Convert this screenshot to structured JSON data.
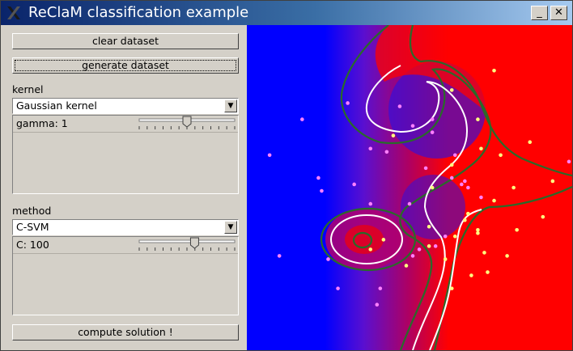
{
  "window": {
    "title": "ReClaM classification example",
    "minimize_label": "_",
    "close_label": "✕",
    "app_icon": "x-logo-icon"
  },
  "panel": {
    "clear_label": "clear dataset",
    "generate_label": "generate dataset",
    "kernel": {
      "heading": "kernel",
      "selected": "Gaussian kernel",
      "param_label": "gamma: 1",
      "slider_fraction": 0.5
    },
    "method": {
      "heading": "method",
      "selected": "C-SVM",
      "param_label": "C: 100",
      "slider_fraction": 0.58
    },
    "compute_label": "compute solution !"
  },
  "colors": {
    "class_a_region": "#0000ff",
    "class_b_region": "#ff0000",
    "decision_boundary": "#ffffff",
    "margin": "#2a6a2a",
    "class_a_point": "#ff80ff",
    "class_b_point": "#ffff80"
  },
  "chart_data": {
    "type": "scatter",
    "title": "",
    "xlim": [
      0,
      1
    ],
    "ylim": [
      0,
      1
    ],
    "series": [
      {
        "points": [
          [
            0.28,
            0.19
          ],
          [
            0.25,
            0.28
          ],
          [
            0.51,
            0.29
          ],
          [
            0.23,
            0.49
          ],
          [
            0.33,
            0.51
          ],
          [
            0.38,
            0.45
          ],
          [
            0.41,
            0.19
          ],
          [
            0.5,
            0.45
          ],
          [
            0.53,
            0.31
          ],
          [
            0.58,
            0.32
          ],
          [
            0.61,
            0.35
          ],
          [
            0.99,
            0.58
          ],
          [
            0.17,
            0.71
          ],
          [
            0.07,
            0.6
          ],
          [
            0.43,
            0.61
          ],
          [
            0.38,
            0.62
          ],
          [
            0.22,
            0.53
          ],
          [
            0.47,
            0.75
          ],
          [
            0.57,
            0.67
          ],
          [
            0.66,
            0.51
          ],
          [
            0.67,
            0.52
          ],
          [
            0.55,
            0.56
          ],
          [
            0.63,
            0.53
          ],
          [
            0.68,
            0.5
          ],
          [
            0.72,
            0.47
          ],
          [
            0.4,
            0.14
          ],
          [
            0.1,
            0.29
          ],
          [
            0.31,
            0.76
          ],
          [
            0.64,
            0.6
          ],
          [
            0.57,
            0.71
          ],
          [
            0.51,
            0.69
          ]
        ]
      },
      {
        "points": [
          [
            0.63,
            0.19
          ],
          [
            0.74,
            0.24
          ],
          [
            0.49,
            0.26
          ],
          [
            0.42,
            0.34
          ],
          [
            0.73,
            0.3
          ],
          [
            0.56,
            0.38
          ],
          [
            0.61,
            0.28
          ],
          [
            0.57,
            0.5
          ],
          [
            0.63,
            0.57
          ],
          [
            0.87,
            0.64
          ],
          [
            0.71,
            0.71
          ],
          [
            0.45,
            0.66
          ],
          [
            0.78,
            0.6
          ],
          [
            0.76,
            0.86
          ],
          [
            0.56,
            0.32
          ],
          [
            0.64,
            0.35
          ],
          [
            0.91,
            0.41
          ],
          [
            0.68,
            0.42
          ],
          [
            0.71,
            0.36
          ],
          [
            0.94,
            0.52
          ],
          [
            0.69,
            0.23
          ],
          [
            0.38,
            0.31
          ],
          [
            0.82,
            0.5
          ],
          [
            0.8,
            0.29
          ],
          [
            0.71,
            0.37
          ],
          [
            0.63,
            0.8
          ],
          [
            0.76,
            0.46
          ],
          [
            0.72,
            0.62
          ],
          [
            0.83,
            0.37
          ],
          [
            0.67,
            0.4
          ]
        ]
      }
    ]
  }
}
